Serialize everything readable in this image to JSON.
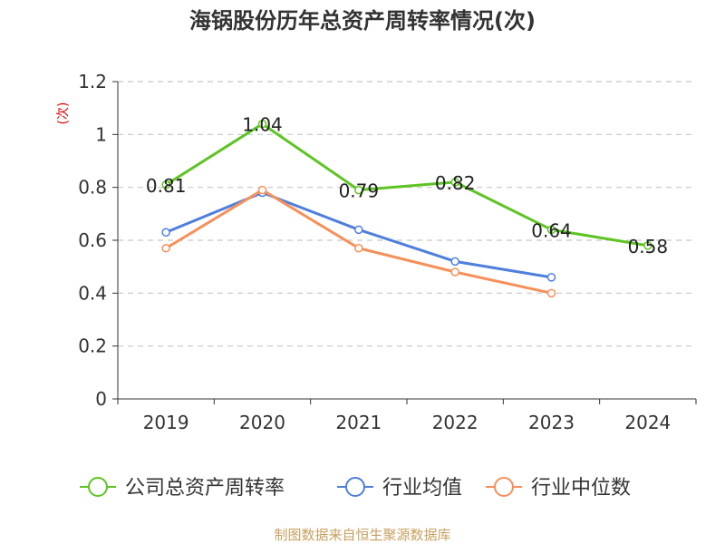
{
  "colors": {
    "company": "#5ec424",
    "industry_avg": "#4f7fdc",
    "industry_median": "#f6905a",
    "grid": "#c8c8c8",
    "axis": "#333333",
    "ylabel": "#e00000",
    "source": "#c8a060"
  },
  "source": "制图数据来自恒生聚源数据库",
  "chart_data": {
    "type": "line",
    "title": "海锅股份历年总资产周转率情况(次)",
    "ylabel": "(次)",
    "xlabel": "",
    "categories": [
      "2019",
      "2020",
      "2021",
      "2022",
      "2023",
      "2024"
    ],
    "ylim": [
      0,
      1.2
    ],
    "yticks": [
      0,
      0.2,
      0.4,
      0.6,
      0.8,
      1,
      1.2
    ],
    "ytick_labels": [
      "0",
      "0.2",
      "0.4",
      "0.6",
      "0.8",
      "1",
      "1.2"
    ],
    "grid": true,
    "legend_position": "bottom",
    "series": [
      {
        "name": "公司总资产周转率",
        "color_key": "company",
        "values": [
          0.81,
          1.04,
          0.79,
          0.82,
          0.64,
          0.58
        ],
        "data_labels": [
          "0.81",
          "1.04",
          "0.79",
          "0.82",
          "0.64",
          "0.58"
        ]
      },
      {
        "name": "行业均值",
        "color_key": "industry_avg",
        "values": [
          0.63,
          0.78,
          0.64,
          0.52,
          0.46,
          null
        ]
      },
      {
        "name": "行业中位数",
        "color_key": "industry_median",
        "values": [
          0.57,
          0.79,
          0.57,
          0.48,
          0.4,
          null
        ]
      }
    ]
  }
}
